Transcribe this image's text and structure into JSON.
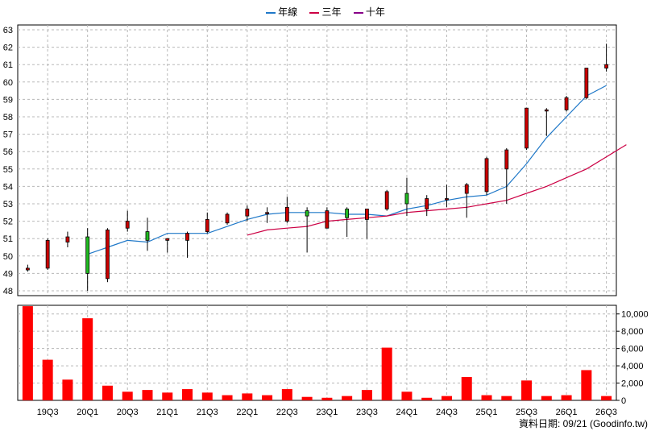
{
  "legend": [
    {
      "label": "年線",
      "color": "#1f78c8"
    },
    {
      "label": "三年",
      "color": "#cc0044"
    },
    {
      "label": "十年",
      "color": "#880088"
    }
  ],
  "source_text": "資料日期: 09/21   (Goodinfo.tw)",
  "chart_data": {
    "type": "candlestick_with_volume",
    "x_tick_labels": [
      "19Q3",
      "20Q1",
      "20Q3",
      "21Q1",
      "21Q3",
      "22Q1",
      "22Q3",
      "23Q1",
      "23Q3",
      "24Q1",
      "24Q3",
      "25Q1",
      "25Q3",
      "26Q1",
      "26Q3"
    ],
    "price_axis": {
      "ylim": [
        48,
        63
      ],
      "ticks": [
        48,
        49,
        50,
        51,
        52,
        53,
        54,
        55,
        56,
        57,
        58,
        59,
        60,
        61,
        62,
        63
      ]
    },
    "volume_axis": {
      "ylim": [
        0,
        11000
      ],
      "ticks": [
        "0",
        "2,000",
        "4,000",
        "6,000",
        "8,000",
        "10,000"
      ],
      "tick_values": [
        0,
        2000,
        4000,
        6000,
        8000,
        10000
      ]
    },
    "candles": [
      {
        "o": 49.3,
        "h": 49.5,
        "l": 49.1,
        "c": 49.2,
        "up": false
      },
      {
        "o": 49.3,
        "h": 51.0,
        "l": 49.2,
        "c": 50.9,
        "up": false
      },
      {
        "o": 51.1,
        "h": 51.4,
        "l": 50.5,
        "c": 50.8,
        "up": false
      },
      {
        "o": 49.0,
        "h": 51.6,
        "l": 48.0,
        "c": 51.1,
        "up": true
      },
      {
        "o": 48.7,
        "h": 51.6,
        "l": 48.5,
        "c": 51.5,
        "up": false
      },
      {
        "o": 51.6,
        "h": 52.6,
        "l": 51.4,
        "c": 52.0,
        "up": false
      },
      {
        "o": 51.4,
        "h": 52.2,
        "l": 50.3,
        "c": 50.9,
        "up": true
      },
      {
        "o": 50.9,
        "h": 51.0,
        "l": 50.2,
        "c": 51.0,
        "up": false
      },
      {
        "o": 50.9,
        "h": 51.4,
        "l": 49.9,
        "c": 51.3,
        "up": false
      },
      {
        "o": 51.4,
        "h": 52.5,
        "l": 51.3,
        "c": 52.1,
        "up": false
      },
      {
        "o": 51.9,
        "h": 52.5,
        "l": 51.8,
        "c": 52.4,
        "up": false
      },
      {
        "o": 52.3,
        "h": 52.9,
        "l": 52.0,
        "c": 52.7,
        "up": false
      },
      {
        "o": 52.5,
        "h": 52.8,
        "l": 51.9,
        "c": 52.5,
        "up": false
      },
      {
        "o": 52.0,
        "h": 53.4,
        "l": 51.9,
        "c": 52.8,
        "up": false
      },
      {
        "o": 52.6,
        "h": 52.8,
        "l": 50.2,
        "c": 52.3,
        "up": true
      },
      {
        "o": 51.6,
        "h": 52.8,
        "l": 51.6,
        "c": 52.6,
        "up": false
      },
      {
        "o": 52.2,
        "h": 52.8,
        "l": 51.1,
        "c": 52.7,
        "up": true
      },
      {
        "o": 52.1,
        "h": 52.7,
        "l": 51.0,
        "c": 52.7,
        "up": false
      },
      {
        "o": 52.7,
        "h": 53.8,
        "l": 52.6,
        "c": 53.7,
        "up": false
      },
      {
        "o": 53.0,
        "h": 54.5,
        "l": 52.3,
        "c": 53.6,
        "up": true
      },
      {
        "o": 52.7,
        "h": 53.5,
        "l": 52.3,
        "c": 53.3,
        "up": false
      },
      {
        "o": 53.3,
        "h": 54.1,
        "l": 52.8,
        "c": 53.3,
        "up": false
      },
      {
        "o": 53.6,
        "h": 54.2,
        "l": 52.2,
        "c": 54.1,
        "up": false
      },
      {
        "o": 53.7,
        "h": 55.7,
        "l": 53.5,
        "c": 55.6,
        "up": false
      },
      {
        "o": 55.0,
        "h": 56.2,
        "l": 53.0,
        "c": 56.1,
        "up": false
      },
      {
        "o": 56.2,
        "h": 58.5,
        "l": 56.1,
        "c": 58.5,
        "up": false
      },
      {
        "o": 58.4,
        "h": 58.5,
        "l": 56.9,
        "c": 58.4,
        "up": false
      },
      {
        "o": 58.4,
        "h": 59.2,
        "l": 58.3,
        "c": 59.1,
        "up": false
      },
      {
        "o": 59.1,
        "h": 60.8,
        "l": 59.0,
        "c": 60.8,
        "up": false
      },
      {
        "o": 60.8,
        "h": 62.2,
        "l": 60.6,
        "c": 61.0,
        "up": false
      }
    ],
    "volumes": [
      10900,
      4700,
      2400,
      9500,
      1700,
      1000,
      1200,
      900,
      1300,
      900,
      600,
      800,
      600,
      1300,
      400,
      300,
      500,
      1200,
      6100,
      1000,
      300,
      500,
      2700,
      600,
      500,
      2300,
      500,
      600,
      3500,
      500
    ],
    "series": [
      {
        "name": "年線",
        "color": "#1f78c8",
        "start_index": 3,
        "values": [
          50.1,
          50.5,
          50.9,
          50.8,
          51.3,
          51.3,
          51.3,
          51.7,
          52.1,
          52.4,
          52.5,
          52.5,
          52.5,
          52.4,
          52.4,
          52.3,
          52.7,
          52.9,
          53.2,
          53.4,
          53.5,
          54.0,
          55.3,
          56.8,
          58.0,
          59.2,
          59.8
        ]
      },
      {
        "name": "三年",
        "color": "#cc0044",
        "start_index": 11,
        "values": [
          51.2,
          51.5,
          51.6,
          51.7,
          52.0,
          52.1,
          52.2,
          52.3,
          52.5,
          52.6,
          52.7,
          52.8,
          53.0,
          53.2,
          53.6,
          54.0,
          54.5,
          55.0,
          55.7,
          56.4
        ]
      }
    ]
  }
}
